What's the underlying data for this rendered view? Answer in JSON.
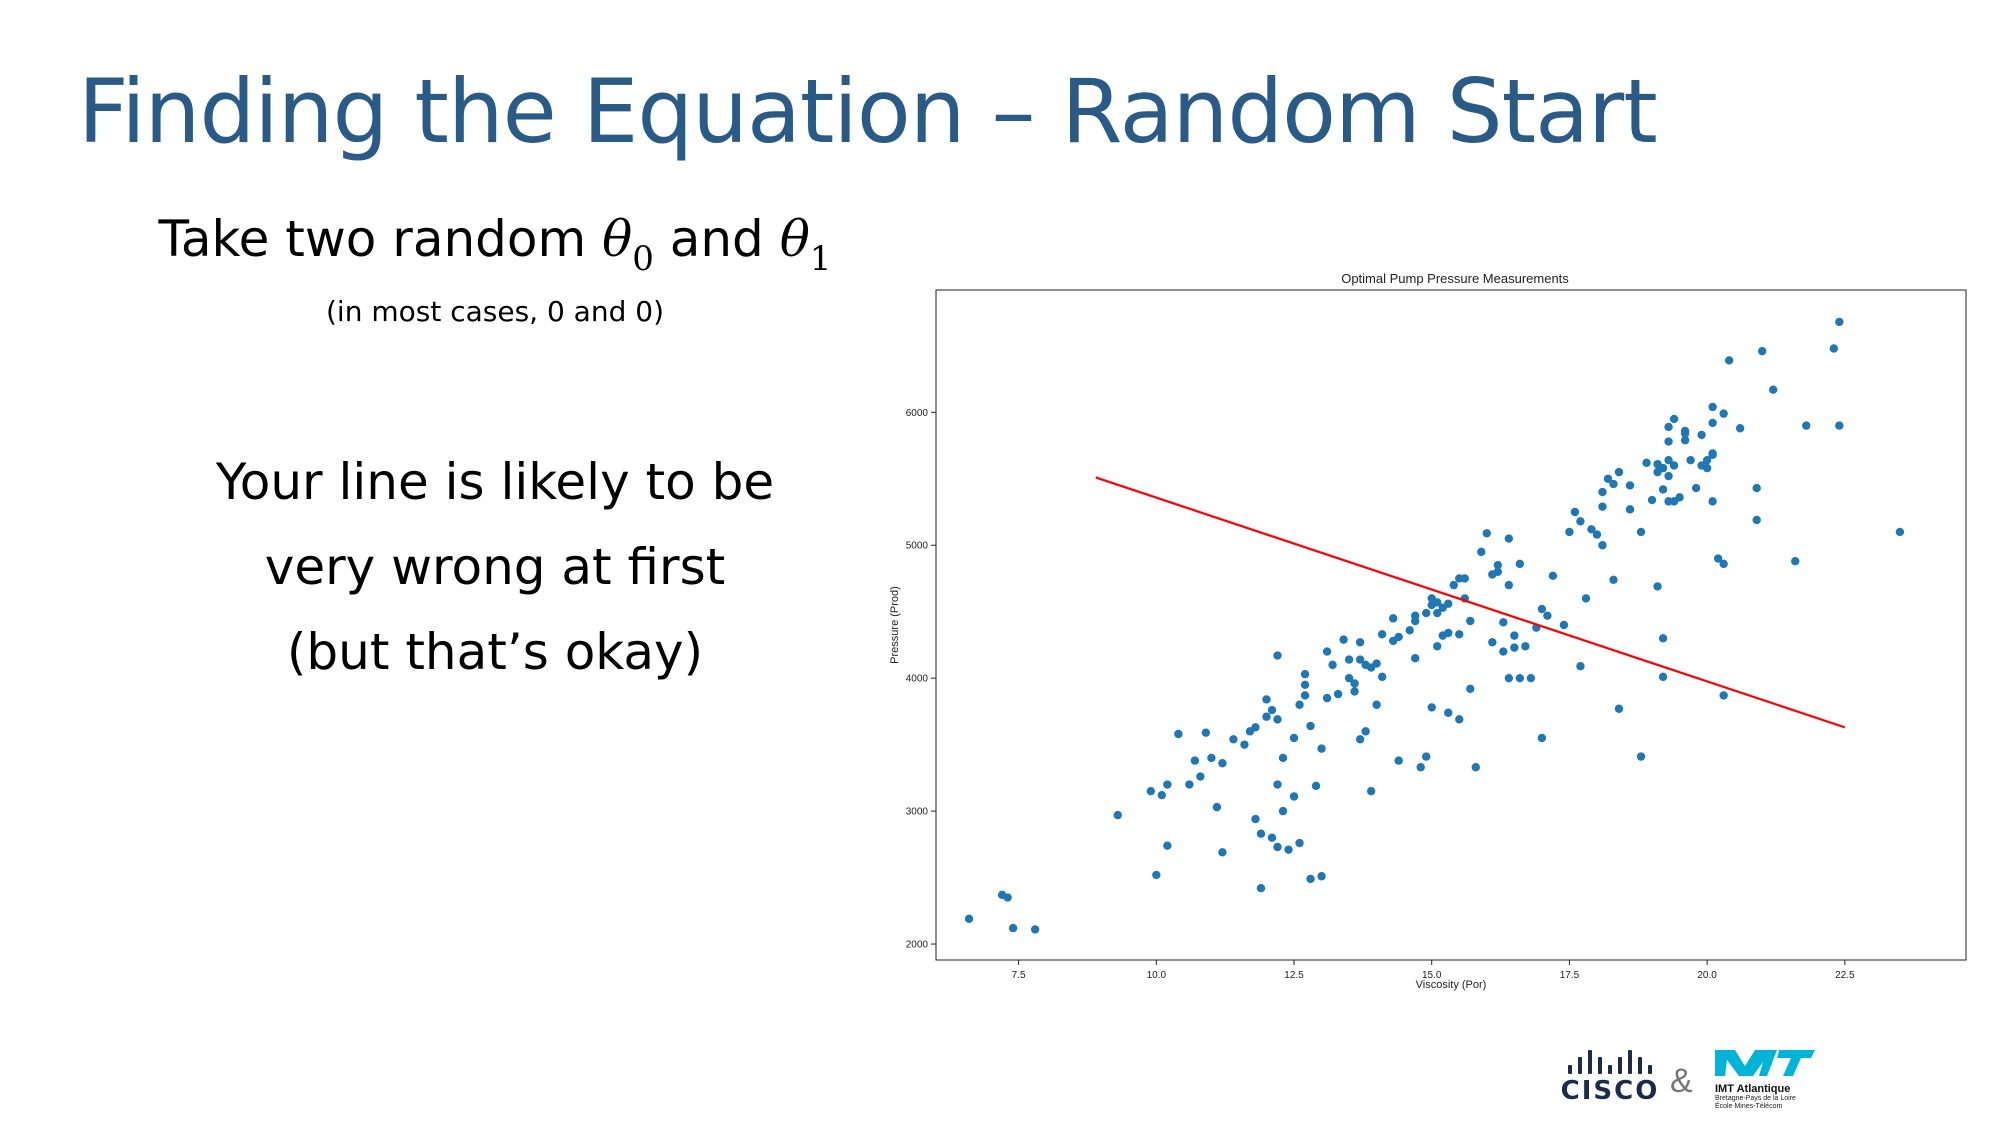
{
  "slide": {
    "title": "Finding the Equation – Random Start",
    "lead_prefix": "Take two random ",
    "theta_symbol": "θ",
    "theta0_sub": "0",
    "and_word": " and ",
    "theta1_sub": "1",
    "note": "(in most cases, 0 and 0)",
    "body_lines": [
      "Your line is likely to be",
      "very wrong at first",
      "(but that’s okay)"
    ]
  },
  "footer": {
    "cisco_label": "CISCO",
    "ampersand": "&",
    "imt_name": "IMT Atlantique",
    "imt_sub_lines": [
      "Bretagne-Pays de la Loire",
      "École Mines-Télécom"
    ]
  },
  "colors": {
    "title": "#2a5b86",
    "points": "#1f77b4",
    "line": "#ff0000",
    "imt_logo": "#00b4d8"
  },
  "chart_data": {
    "type": "scatter",
    "title": "Optimal Pump Pressure Measurements",
    "xlabel": "Viscosity (Por)",
    "ylabel": "Pressure (Prod)",
    "xlim": [
      6.0,
      24.7
    ],
    "ylim": [
      1880,
      6920
    ],
    "xticks": [
      7.5,
      10.0,
      12.5,
      15.0,
      17.5,
      20.0,
      22.5
    ],
    "yticks": [
      2000,
      3000,
      4000,
      5000,
      6000
    ],
    "xtick_labels": [
      "7.5",
      "10.0",
      "12.5",
      "15.0",
      "17.5",
      "20.0",
      "22.5"
    ],
    "ytick_labels": [
      "2000",
      "3000",
      "4000",
      "5000",
      "6000"
    ],
    "grid": false,
    "points": [
      [
        6.6,
        2190
      ],
      [
        7.2,
        2370
      ],
      [
        7.3,
        2350
      ],
      [
        7.4,
        2120
      ],
      [
        7.8,
        2110
      ],
      [
        9.3,
        2970
      ],
      [
        9.9,
        3150
      ],
      [
        10.0,
        2520
      ],
      [
        10.2,
        3200
      ],
      [
        10.1,
        3120
      ],
      [
        10.2,
        2740
      ],
      [
        10.4,
        3580
      ],
      [
        10.6,
        3200
      ],
      [
        10.7,
        3380
      ],
      [
        10.8,
        3260
      ],
      [
        10.9,
        3590
      ],
      [
        11.0,
        3400
      ],
      [
        11.1,
        3030
      ],
      [
        11.2,
        2690
      ],
      [
        11.2,
        3360
      ],
      [
        11.4,
        3540
      ],
      [
        11.6,
        3500
      ],
      [
        11.7,
        3600
      ],
      [
        11.8,
        3630
      ],
      [
        11.8,
        2940
      ],
      [
        11.9,
        2830
      ],
      [
        11.9,
        2420
      ],
      [
        12.0,
        3840
      ],
      [
        12.0,
        3710
      ],
      [
        12.1,
        3760
      ],
      [
        12.1,
        2800
      ],
      [
        12.2,
        2730
      ],
      [
        12.2,
        3690
      ],
      [
        12.2,
        3200
      ],
      [
        12.2,
        4170
      ],
      [
        12.3,
        3400
      ],
      [
        12.3,
        3000
      ],
      [
        12.4,
        2710
      ],
      [
        12.5,
        3550
      ],
      [
        12.5,
        3110
      ],
      [
        12.6,
        2760
      ],
      [
        12.6,
        3800
      ],
      [
        12.7,
        3870
      ],
      [
        12.7,
        4030
      ],
      [
        12.7,
        3950
      ],
      [
        12.8,
        2490
      ],
      [
        12.8,
        3640
      ],
      [
        12.9,
        3190
      ],
      [
        13.0,
        2510
      ],
      [
        13.0,
        3470
      ],
      [
        13.1,
        4200
      ],
      [
        13.1,
        3850
      ],
      [
        13.2,
        4100
      ],
      [
        13.3,
        3880
      ],
      [
        13.4,
        4290
      ],
      [
        13.5,
        4000
      ],
      [
        13.5,
        4140
      ],
      [
        13.6,
        3960
      ],
      [
        13.6,
        3900
      ],
      [
        13.7,
        4140
      ],
      [
        13.7,
        4270
      ],
      [
        13.7,
        3540
      ],
      [
        13.8,
        4100
      ],
      [
        13.8,
        3600
      ],
      [
        13.9,
        4080
      ],
      [
        13.9,
        3150
      ],
      [
        14.0,
        4110
      ],
      [
        14.0,
        3800
      ],
      [
        14.1,
        4330
      ],
      [
        14.1,
        4010
      ],
      [
        14.3,
        4280
      ],
      [
        14.3,
        4450
      ],
      [
        14.4,
        4310
      ],
      [
        14.4,
        3380
      ],
      [
        14.6,
        4360
      ],
      [
        14.7,
        4430
      ],
      [
        14.7,
        4470
      ],
      [
        14.7,
        4150
      ],
      [
        14.8,
        3330
      ],
      [
        14.9,
        4490
      ],
      [
        14.9,
        3410
      ],
      [
        15.0,
        4550
      ],
      [
        15.0,
        4600
      ],
      [
        15.0,
        3780
      ],
      [
        15.1,
        4570
      ],
      [
        15.1,
        4490
      ],
      [
        15.1,
        4240
      ],
      [
        15.2,
        4530
      ],
      [
        15.2,
        4320
      ],
      [
        15.3,
        4560
      ],
      [
        15.3,
        4340
      ],
      [
        15.3,
        3740
      ],
      [
        15.4,
        4700
      ],
      [
        15.5,
        4750
      ],
      [
        15.5,
        4330
      ],
      [
        15.5,
        3690
      ],
      [
        15.6,
        4750
      ],
      [
        15.6,
        4600
      ],
      [
        15.7,
        4430
      ],
      [
        15.7,
        3920
      ],
      [
        15.8,
        3330
      ],
      [
        15.9,
        4950
      ],
      [
        16.0,
        5090
      ],
      [
        16.1,
        4780
      ],
      [
        16.1,
        4270
      ],
      [
        16.2,
        4850
      ],
      [
        16.2,
        4800
      ],
      [
        16.3,
        4200
      ],
      [
        16.3,
        4420
      ],
      [
        16.4,
        4700
      ],
      [
        16.4,
        4000
      ],
      [
        16.4,
        5050
      ],
      [
        16.5,
        4230
      ],
      [
        16.5,
        4320
      ],
      [
        16.6,
        4860
      ],
      [
        16.6,
        4000
      ],
      [
        16.7,
        4240
      ],
      [
        16.9,
        4380
      ],
      [
        17.0,
        3550
      ],
      [
        17.1,
        4470
      ],
      [
        17.2,
        4770
      ],
      [
        17.4,
        4400
      ],
      [
        17.5,
        5100
      ],
      [
        17.6,
        5250
      ],
      [
        17.7,
        4090
      ],
      [
        17.7,
        5180
      ],
      [
        17.8,
        4600
      ],
      [
        17.9,
        5120
      ],
      [
        18.0,
        5080
      ],
      [
        18.1,
        5290
      ],
      [
        18.1,
        5400
      ],
      [
        18.2,
        5500
      ],
      [
        18.3,
        5460
      ],
      [
        18.3,
        4740
      ],
      [
        18.4,
        5550
      ],
      [
        18.4,
        3770
      ],
      [
        18.6,
        5450
      ],
      [
        18.6,
        5270
      ],
      [
        18.8,
        3410
      ],
      [
        18.8,
        5100
      ],
      [
        18.9,
        5620
      ],
      [
        19.0,
        5340
      ],
      [
        19.1,
        5550
      ],
      [
        19.1,
        5610
      ],
      [
        19.1,
        4690
      ],
      [
        19.2,
        5580
      ],
      [
        19.2,
        5420
      ],
      [
        19.2,
        4300
      ],
      [
        19.2,
        4010
      ],
      [
        19.3,
        5520
      ],
      [
        19.3,
        5640
      ],
      [
        19.3,
        5780
      ],
      [
        19.3,
        5890
      ],
      [
        19.3,
        5330
      ],
      [
        19.4,
        5950
      ],
      [
        19.4,
        5600
      ],
      [
        19.4,
        5330
      ],
      [
        19.5,
        5360
      ],
      [
        19.6,
        5790
      ],
      [
        19.6,
        5840
      ],
      [
        19.6,
        5860
      ],
      [
        19.7,
        5640
      ],
      [
        19.8,
        5430
      ],
      [
        19.9,
        5600
      ],
      [
        19.9,
        5830
      ],
      [
        20.0,
        5640
      ],
      [
        20.0,
        5580
      ],
      [
        20.1,
        5690
      ],
      [
        20.1,
        5680
      ],
      [
        20.1,
        5920
      ],
      [
        20.1,
        5330
      ],
      [
        20.1,
        6040
      ],
      [
        20.2,
        4900
      ],
      [
        20.3,
        4860
      ],
      [
        20.3,
        5990
      ],
      [
        20.3,
        3870
      ],
      [
        20.4,
        6390
      ],
      [
        20.6,
        5880
      ],
      [
        20.9,
        5430
      ],
      [
        20.9,
        5190
      ],
      [
        21.0,
        6460
      ],
      [
        21.2,
        6170
      ],
      [
        21.6,
        4880
      ],
      [
        21.8,
        5900
      ],
      [
        22.3,
        6480
      ],
      [
        22.4,
        6680
      ],
      [
        22.4,
        5900
      ],
      [
        23.5,
        5100
      ],
      [
        18.1,
        5000
      ],
      [
        17.0,
        4520
      ],
      [
        16.8,
        4000
      ]
    ],
    "lines": [
      {
        "x": [
          8.9,
          22.5
        ],
        "y": [
          5510,
          3630
        ]
      }
    ]
  }
}
